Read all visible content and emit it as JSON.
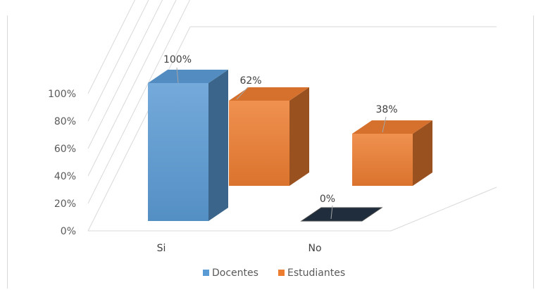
{
  "chart_data": {
    "type": "bar",
    "style": "3d-column",
    "categories": [
      "Si",
      "No"
    ],
    "series": [
      {
        "name": "Docentes",
        "values": [
          100,
          0
        ],
        "color": "#5b9bd5"
      },
      {
        "name": "Estudiantes",
        "values": [
          62,
          38
        ],
        "color": "#ed7d31"
      }
    ],
    "data_labels": [
      [
        "100%",
        "0%"
      ],
      [
        "62%",
        "38%"
      ]
    ],
    "yticks": [
      "0%",
      "20%",
      "40%",
      "60%",
      "80%",
      "100%"
    ],
    "ylim": [
      0,
      100
    ],
    "grid": true,
    "legend_position": "bottom",
    "colors": {
      "docentes_dark": "#1f2d3d",
      "grid": "#d9d9d9"
    }
  }
}
